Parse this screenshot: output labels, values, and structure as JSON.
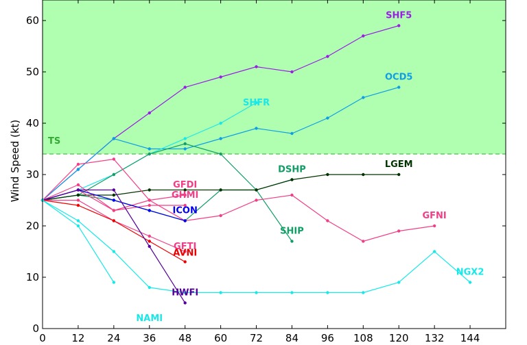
{
  "chart_data": {
    "type": "line",
    "title": "",
    "xlabel": "",
    "ylabel": "Wind Speed (kt)",
    "xlim": [
      0,
      156
    ],
    "ylim": [
      0,
      64
    ],
    "xticks": [
      0,
      12,
      24,
      36,
      48,
      60,
      72,
      84,
      96,
      108,
      120,
      132,
      144
    ],
    "yticks": [
      0,
      10,
      20,
      30,
      40,
      50,
      60
    ],
    "grid": false,
    "threshold": {
      "label": "TS",
      "value": 34,
      "color": "#33aa33",
      "fill": "#b0ffb0"
    },
    "series": [
      {
        "name": "SHF5",
        "color": "#9a1ce6",
        "label_at": [
          120,
          60.5
        ],
        "points": [
          [
            0,
            25
          ],
          [
            12,
            31
          ],
          [
            24,
            37
          ],
          [
            36,
            42
          ],
          [
            48,
            47
          ],
          [
            60,
            49
          ],
          [
            72,
            51
          ],
          [
            84,
            50
          ],
          [
            96,
            53
          ],
          [
            108,
            57
          ],
          [
            120,
            59
          ]
        ]
      },
      {
        "name": "OCD5",
        "color": "#0f9ee6",
        "label_at": [
          120,
          48.5
        ],
        "points": [
          [
            0,
            25
          ],
          [
            12,
            31
          ],
          [
            24,
            37
          ],
          [
            36,
            35
          ],
          [
            48,
            35
          ],
          [
            60,
            37
          ],
          [
            72,
            39
          ],
          [
            84,
            38
          ],
          [
            96,
            41
          ],
          [
            108,
            45
          ],
          [
            120,
            47
          ]
        ]
      },
      {
        "name": "SHFR",
        "color": "#18e8e8",
        "label_at": [
          72,
          43.5
        ],
        "points": [
          [
            0,
            25
          ],
          [
            12,
            27
          ],
          [
            24,
            30
          ],
          [
            36,
            34
          ],
          [
            48,
            37
          ],
          [
            60,
            40
          ],
          [
            72,
            44
          ]
        ]
      },
      {
        "name": "SHIP",
        "color": "#119e66",
        "label_at": [
          84,
          18.5
        ],
        "points": [
          [
            0,
            25
          ],
          [
            12,
            26
          ],
          [
            24,
            30
          ],
          [
            36,
            34
          ],
          [
            48,
            36
          ],
          [
            60,
            34
          ],
          [
            72,
            27
          ],
          [
            84,
            17
          ]
        ]
      },
      {
        "name": "DSHP",
        "color": "#119e66",
        "label_at": [
          84,
          30.5
        ],
        "points": [
          [
            0,
            25
          ],
          [
            12,
            26
          ],
          [
            24,
            25
          ],
          [
            36,
            23
          ],
          [
            48,
            21
          ],
          [
            60,
            27
          ],
          [
            72,
            27
          ],
          [
            84,
            29
          ]
        ]
      },
      {
        "name": "LGEM",
        "color": "#003300",
        "label_at": [
          120,
          31.5
        ],
        "points": [
          [
            0,
            25
          ],
          [
            12,
            26
          ],
          [
            24,
            26
          ],
          [
            36,
            27
          ],
          [
            48,
            27
          ],
          [
            60,
            27
          ],
          [
            72,
            27
          ],
          [
            84,
            29
          ],
          [
            96,
            30
          ],
          [
            108,
            30
          ],
          [
            120,
            30
          ]
        ]
      },
      {
        "name": "GFNI",
        "color": "#f23d87",
        "label_at": [
          132,
          21.5
        ],
        "points": [
          [
            0,
            25
          ],
          [
            12,
            32
          ],
          [
            24,
            33
          ],
          [
            36,
            25
          ],
          [
            48,
            21
          ],
          [
            60,
            22
          ],
          [
            72,
            25
          ],
          [
            84,
            26
          ],
          [
            96,
            21
          ],
          [
            108,
            17
          ],
          [
            120,
            19
          ],
          [
            132,
            20
          ]
        ]
      },
      {
        "name": "GFDI",
        "color": "#f23d87",
        "label_at": [
          48,
          27.5
        ],
        "points": [
          [
            0,
            25
          ],
          [
            12,
            28
          ],
          [
            24,
            23
          ],
          [
            36,
            25
          ],
          [
            48,
            26
          ]
        ]
      },
      {
        "name": "GHMI",
        "color": "#f23d87",
        "label_at": [
          48,
          25.5
        ],
        "points": [
          [
            0,
            25
          ],
          [
            12,
            27
          ],
          [
            24,
            23
          ],
          [
            36,
            24
          ],
          [
            48,
            24
          ]
        ]
      },
      {
        "name": "ICON",
        "color": "#0000ee",
        "label_at": [
          48,
          22.5
        ],
        "points": [
          [
            0,
            25
          ],
          [
            12,
            27
          ],
          [
            24,
            25
          ],
          [
            36,
            23
          ],
          [
            48,
            21
          ]
        ]
      },
      {
        "name": "GFTI",
        "color": "#f23d87",
        "label_at": [
          48,
          15.5
        ],
        "points": [
          [
            0,
            25
          ],
          [
            12,
            25
          ],
          [
            24,
            21
          ],
          [
            36,
            18
          ],
          [
            48,
            15
          ]
        ]
      },
      {
        "name": "AVNI",
        "color": "#ee0000",
        "label_at": [
          48,
          14.2
        ],
        "points": [
          [
            0,
            25
          ],
          [
            12,
            24
          ],
          [
            24,
            21
          ],
          [
            36,
            17
          ],
          [
            48,
            13
          ]
        ]
      },
      {
        "name": "HWFI",
        "color": "#550099",
        "label_at": [
          48,
          6.5
        ],
        "points": [
          [
            0,
            25
          ],
          [
            12,
            27
          ],
          [
            24,
            27
          ],
          [
            36,
            16
          ],
          [
            48,
            5
          ]
        ]
      },
      {
        "name": "NGX2",
        "color": "#18e8e8",
        "label_at": [
          144,
          10.5
        ],
        "points": [
          [
            0,
            25
          ],
          [
            12,
            21
          ],
          [
            24,
            15
          ],
          [
            36,
            8
          ],
          [
            48,
            7
          ],
          [
            60,
            7
          ],
          [
            72,
            7
          ],
          [
            84,
            7
          ],
          [
            96,
            7
          ],
          [
            108,
            7
          ],
          [
            120,
            9
          ],
          [
            132,
            15
          ],
          [
            144,
            9
          ]
        ]
      },
      {
        "name": "NAMI",
        "color": "#18e8e8",
        "label_at": [
          36,
          1.5
        ],
        "points": [
          [
            0,
            25
          ],
          [
            12,
            20
          ],
          [
            24,
            9
          ]
        ]
      }
    ]
  }
}
